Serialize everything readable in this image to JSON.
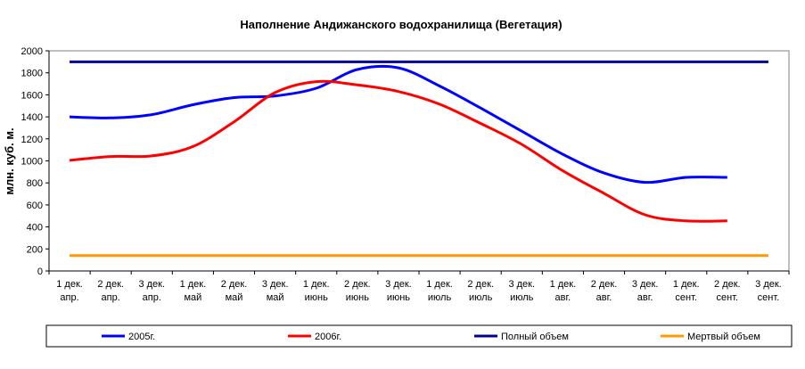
{
  "chart_data": {
    "type": "line",
    "title": "Наполнение Андижанского водохранилища (Вегетация)",
    "ylabel": "млн. куб. м.",
    "xlabel": "",
    "ylim": [
      0,
      2000
    ],
    "yticks": [
      0,
      200,
      400,
      600,
      800,
      1000,
      1200,
      1400,
      1600,
      1800,
      2000
    ],
    "grid": false,
    "legend": "bottom",
    "categories": [
      [
        "1 дек.",
        "апр."
      ],
      [
        "2 дек.",
        "апр."
      ],
      [
        "3 дек.",
        "апр."
      ],
      [
        "1 дек.",
        "май"
      ],
      [
        "2 дек.",
        "май"
      ],
      [
        "3 дек.",
        "май"
      ],
      [
        "1 дек.",
        "июнь"
      ],
      [
        "2 дек.",
        "июнь"
      ],
      [
        "3 дек.",
        "июнь"
      ],
      [
        "1 дек.",
        "июль"
      ],
      [
        "2 дек.",
        "июль"
      ],
      [
        "3 дек.",
        "июль"
      ],
      [
        "1 дек.",
        "авг."
      ],
      [
        "2 дек.",
        "авг."
      ],
      [
        "3 дек.",
        "авг."
      ],
      [
        "1 дек.",
        "сент."
      ],
      [
        "2 дек.",
        "сент."
      ],
      [
        "3 дек.",
        "сент."
      ]
    ],
    "series": [
      {
        "name": "2005г.",
        "color": "#0000ff",
        "values": [
          1400,
          1390,
          1420,
          1510,
          1575,
          1590,
          1660,
          1830,
          1845,
          1680,
          1480,
          1270,
          1060,
          890,
          805,
          850,
          850,
          null
        ]
      },
      {
        "name": "2006г.",
        "color": "#ff0000",
        "values": [
          1005,
          1040,
          1045,
          1130,
          1355,
          1620,
          1720,
          1690,
          1630,
          1515,
          1340,
          1150,
          910,
          705,
          510,
          455,
          455,
          null
        ]
      },
      {
        "name": "Полный объем",
        "color": "#000099",
        "values": [
          1900,
          1900,
          1900,
          1900,
          1900,
          1900,
          1900,
          1900,
          1900,
          1900,
          1900,
          1900,
          1900,
          1900,
          1900,
          1900,
          1900,
          1900
        ]
      },
      {
        "name": "Мертвый объем",
        "color": "#ff9900",
        "values": [
          140,
          140,
          140,
          140,
          140,
          140,
          140,
          140,
          140,
          140,
          140,
          140,
          140,
          140,
          140,
          140,
          140,
          140
        ]
      }
    ]
  }
}
